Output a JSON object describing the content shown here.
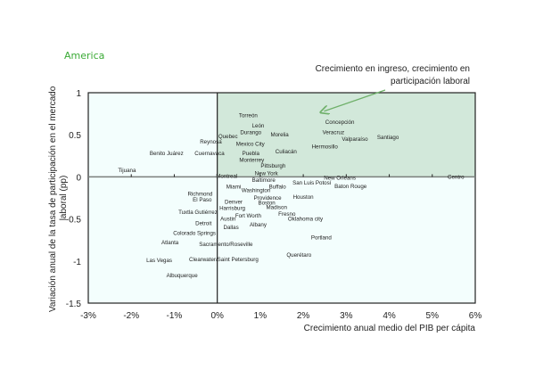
{
  "region_title": "America",
  "colors": {
    "title": "#3aaa35",
    "quadrant_growth": "#d2e8da",
    "background_plot": "#f3fefd",
    "arrow": "#6fb06a",
    "zero_line": "#7a7f7c"
  },
  "chart_data": {
    "type": "scatter",
    "title": "America",
    "xlabel": "Crecimiento anual medio del PIB per cápita",
    "ylabel": "Variación anual de la tasa de participación en el mercado laboral (pp)",
    "xlim": [
      -3,
      6
    ],
    "ylim": [
      -1.5,
      1
    ],
    "x_ticks": [
      -3,
      -2,
      -1,
      0,
      1,
      2,
      3,
      4,
      5,
      6
    ],
    "x_tick_labels": [
      "-3%",
      "-2%",
      "-1%",
      "0%",
      "1%",
      "2%",
      "3%",
      "4%",
      "5%",
      "6%"
    ],
    "y_ticks": [
      1,
      0.5,
      0,
      -0.5,
      -1,
      -1.5
    ],
    "y_tick_labels": [
      "1",
      "0.5",
      "0",
      "-0.5",
      "-1",
      "-1.5"
    ],
    "grid": false,
    "annotation": {
      "line1": "Crecimiento en ingreso, crecimiento  en",
      "line2": "participación laboral",
      "points_to": [
        2.4,
        0.77
      ]
    },
    "highlighted_quadrant": "x>0, y>0",
    "points": [
      {
        "label": "Torreón",
        "x": 0.72,
        "y": 0.73
      },
      {
        "label": "León",
        "x": 0.95,
        "y": 0.61
      },
      {
        "label": "Durango",
        "x": 0.78,
        "y": 0.53
      },
      {
        "label": "Morelia",
        "x": 1.45,
        "y": 0.5
      },
      {
        "label": "Quebec",
        "x": 0.25,
        "y": 0.48
      },
      {
        "label": "Reynosa",
        "x": -0.15,
        "y": 0.42
      },
      {
        "label": "Mexico City",
        "x": 0.77,
        "y": 0.39
      },
      {
        "label": "Cuernavaca",
        "x": -0.18,
        "y": 0.28
      },
      {
        "label": "Benito Juárez",
        "x": -1.18,
        "y": 0.28
      },
      {
        "label": "Puebla",
        "x": 0.78,
        "y": 0.28
      },
      {
        "label": "Culiacán",
        "x": 1.6,
        "y": 0.3
      },
      {
        "label": "Monterrey",
        "x": 0.8,
        "y": 0.2
      },
      {
        "label": "Pittsburgh",
        "x": 1.3,
        "y": 0.13
      },
      {
        "label": "Montreal",
        "x": 0.22,
        "y": 0.01
      },
      {
        "label": "New York",
        "x": 1.14,
        "y": 0.04
      },
      {
        "label": "Baltimore",
        "x": 1.08,
        "y": -0.04
      },
      {
        "label": "Tijuana",
        "x": -2.1,
        "y": 0.08
      },
      {
        "label": "Concepción",
        "x": 2.85,
        "y": 0.65
      },
      {
        "label": "Veracruz",
        "x": 2.7,
        "y": 0.53
      },
      {
        "label": "Valparaíso",
        "x": 3.2,
        "y": 0.45
      },
      {
        "label": "Santiago",
        "x": 3.97,
        "y": 0.47
      },
      {
        "label": "Hermosillo",
        "x": 2.5,
        "y": 0.36
      },
      {
        "label": "New Orleans",
        "x": 2.85,
        "y": -0.01
      },
      {
        "label": "San Luis Potosí",
        "x": 2.2,
        "y": -0.07
      },
      {
        "label": "Baton Rouge",
        "x": 3.1,
        "y": -0.11
      },
      {
        "label": "Centro",
        "x": 5.55,
        "y": 0.0
      },
      {
        "label": "Miami",
        "x": 0.38,
        "y": -0.12
      },
      {
        "label": "Washington",
        "x": 0.9,
        "y": -0.16
      },
      {
        "label": "Buffalo",
        "x": 1.4,
        "y": -0.12
      },
      {
        "label": "Richmond",
        "x": -0.4,
        "y": -0.2
      },
      {
        "label": "El Paso",
        "x": -0.35,
        "y": -0.27
      },
      {
        "label": "Providence",
        "x": 1.17,
        "y": -0.25
      },
      {
        "label": "Houston",
        "x": 2.0,
        "y": -0.24
      },
      {
        "label": "Denver",
        "x": 0.38,
        "y": -0.3
      },
      {
        "label": "Boston",
        "x": 1.15,
        "y": -0.31
      },
      {
        "label": "Harrisburg",
        "x": 0.35,
        "y": -0.37
      },
      {
        "label": "Madison",
        "x": 1.38,
        "y": -0.36
      },
      {
        "label": "Tuxtla Gutiérrez",
        "x": -0.45,
        "y": -0.42
      },
      {
        "label": "Fresno",
        "x": 1.62,
        "y": -0.44
      },
      {
        "label": "Austin",
        "x": 0.25,
        "y": -0.5
      },
      {
        "label": "Fort Worth",
        "x": 0.72,
        "y": -0.46
      },
      {
        "label": "Oklahoma city",
        "x": 2.05,
        "y": -0.5
      },
      {
        "label": "Detroit",
        "x": -0.32,
        "y": -0.55
      },
      {
        "label": "Albany",
        "x": 0.95,
        "y": -0.57
      },
      {
        "label": "Dallas",
        "x": 0.32,
        "y": -0.6
      },
      {
        "label": "Colorado Springs",
        "x": -0.53,
        "y": -0.67
      },
      {
        "label": "Portland",
        "x": 2.42,
        "y": -0.72
      },
      {
        "label": "Atlanta",
        "x": -1.1,
        "y": -0.78
      },
      {
        "label": "Sacramento/Roseville",
        "x": 0.2,
        "y": -0.8
      },
      {
        "label": "Querétaro",
        "x": 1.9,
        "y": -0.93
      },
      {
        "label": "Las Vegas",
        "x": -1.35,
        "y": -0.99
      },
      {
        "label": "Clearwater/Saint Petersburg",
        "x": 0.15,
        "y": -0.98
      },
      {
        "label": "Albuquerque",
        "x": -0.82,
        "y": -1.17
      }
    ]
  }
}
